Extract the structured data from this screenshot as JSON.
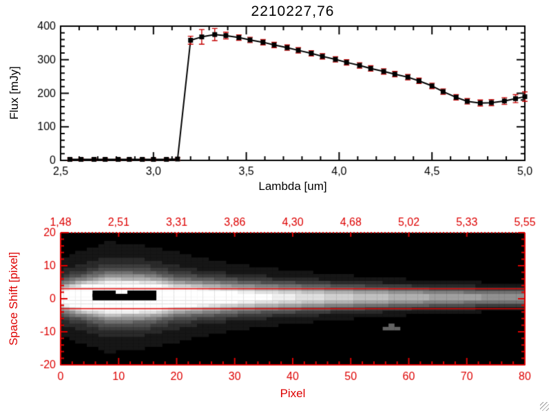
{
  "colors": {
    "background": "#ffffff",
    "spectrum_axis": "#000000",
    "trace_axis": "#dd0000",
    "error_bar": "#c40000",
    "marker": "#000000",
    "image_background": "#000000"
  },
  "chart_data": [
    {
      "type": "line",
      "title": "2210227,76",
      "xlabel": "Lambda [um]",
      "ylabel": "Flux [mJy]",
      "xlim": [
        2.5,
        5.0
      ],
      "ylim": [
        0,
        400
      ],
      "xticks": {
        "values": [
          2.5,
          3.0,
          3.5,
          4.0,
          4.5,
          5.0
        ],
        "labels": [
          "2,5",
          "3,0",
          "3,5",
          "4,0",
          "4,5",
          "5,0"
        ]
      },
      "yticks": {
        "values": [
          0,
          100,
          200,
          300,
          400
        ],
        "labels": [
          "0",
          "100",
          "200",
          "300",
          "400"
        ]
      },
      "marker": "filled-square",
      "x": [
        2.55,
        2.61,
        2.68,
        2.74,
        2.81,
        2.87,
        2.94,
        3.0,
        3.07,
        3.13,
        3.2,
        3.26,
        3.33,
        3.39,
        3.46,
        3.52,
        3.59,
        3.65,
        3.72,
        3.78,
        3.85,
        3.91,
        3.98,
        4.04,
        4.11,
        4.17,
        4.24,
        4.3,
        4.37,
        4.43,
        4.5,
        4.56,
        4.63,
        4.69,
        4.76,
        4.82,
        4.89,
        4.95,
        5.0
      ],
      "y": [
        3,
        3,
        3,
        3,
        3,
        3,
        3,
        3,
        3,
        4,
        358,
        368,
        375,
        372,
        366,
        359,
        352,
        344,
        336,
        328,
        319,
        310,
        301,
        292,
        283,
        274,
        265,
        257,
        248,
        237,
        222,
        205,
        188,
        176,
        171,
        172,
        177,
        184,
        190
      ],
      "yerr": [
        4,
        4,
        4,
        4,
        4,
        4,
        4,
        4,
        4,
        4,
        12,
        22,
        18,
        10,
        8,
        8,
        8,
        8,
        8,
        8,
        8,
        8,
        8,
        8,
        8,
        8,
        8,
        8,
        8,
        8,
        8,
        8,
        8,
        8,
        9,
        9,
        10,
        12,
        14
      ]
    },
    {
      "type": "heatmap",
      "xlabel": "Pixel",
      "ylabel": "Space Shift [pixel]",
      "xlim": [
        0,
        80
      ],
      "ylim": [
        -20,
        20
      ],
      "xticks": {
        "values": [
          0,
          10,
          20,
          30,
          40,
          50,
          60,
          70,
          80
        ],
        "labels": [
          "0",
          "10",
          "20",
          "30",
          "40",
          "50",
          "60",
          "70",
          "80"
        ]
      },
      "yticks": {
        "values": [
          -20,
          -10,
          0,
          10,
          20
        ],
        "labels": [
          "-20",
          "-10",
          "0",
          "10",
          "20"
        ]
      },
      "top_axis": {
        "tick_positions": [
          0,
          10,
          20,
          30,
          40,
          50,
          60,
          70,
          80
        ],
        "labels": [
          "1,48",
          "2,51",
          "3,31",
          "3,86",
          "4,30",
          "4,68",
          "5,02",
          "5,33",
          "5,55"
        ]
      },
      "aperture_lines_y": [
        3,
        -3
      ],
      "trace": {
        "center": 0.5,
        "gain": 1.35,
        "gamma": 0.9,
        "gray_levels": 16,
        "amp": [
          [
            0,
            0.72
          ],
          [
            2,
            0.92
          ],
          [
            4,
            1.0
          ],
          [
            16,
            1.0
          ],
          [
            20,
            0.86
          ],
          [
            28,
            0.74
          ],
          [
            36,
            0.64
          ],
          [
            44,
            0.57
          ],
          [
            52,
            0.52
          ],
          [
            60,
            0.47
          ],
          [
            70,
            0.42
          ],
          [
            80,
            0.4
          ]
        ],
        "sigma": [
          [
            0,
            2.6
          ],
          [
            4,
            3.2
          ],
          [
            8,
            3.8
          ],
          [
            14,
            3.8
          ],
          [
            20,
            3.2
          ],
          [
            30,
            2.8
          ],
          [
            40,
            2.5
          ],
          [
            50,
            2.2
          ],
          [
            60,
            2.0
          ],
          [
            70,
            1.8
          ],
          [
            80,
            1.7
          ]
        ],
        "halo_amp": [
          [
            0,
            0.22
          ],
          [
            8,
            0.3
          ],
          [
            16,
            0.26
          ],
          [
            24,
            0.18
          ],
          [
            32,
            0.14
          ],
          [
            40,
            0.11
          ],
          [
            48,
            0.08
          ],
          [
            56,
            0.06
          ],
          [
            64,
            0.04
          ],
          [
            72,
            0.03
          ],
          [
            80,
            0.025
          ]
        ],
        "halo_sigma": [
          [
            0,
            6.0
          ],
          [
            8,
            8.0
          ],
          [
            16,
            7.5
          ],
          [
            24,
            6.5
          ],
          [
            32,
            5.5
          ],
          [
            40,
            5.0
          ],
          [
            48,
            4.5
          ],
          [
            56,
            4.0
          ],
          [
            64,
            3.5
          ],
          [
            72,
            3.2
          ],
          [
            80,
            3.0
          ]
        ]
      },
      "saturated_rects": [
        [
          6,
          16,
          0,
          1
        ],
        [
          6,
          9,
          1,
          2
        ],
        [
          12,
          16,
          1,
          2
        ]
      ],
      "artifact_cells": {
        "cells": [
          [
            56,
            -9
          ],
          [
            57,
            -9
          ],
          [
            57,
            -8
          ],
          [
            58,
            -9
          ]
        ],
        "level": 0.35
      }
    }
  ]
}
